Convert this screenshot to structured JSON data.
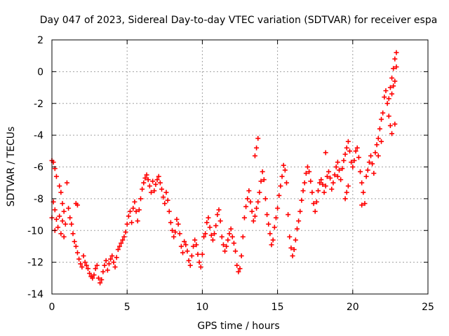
{
  "chart_data": {
    "type": "scatter",
    "title": "Day 047 of 2023, Sidereal Day-to-day VTEC variation (SDTVAR) for receiver espa",
    "xlabel": "GPS time / hours",
    "ylabel": "SDTVAR / TECUs",
    "xlim": [
      0,
      25
    ],
    "ylim": [
      -14,
      2
    ],
    "xticks": [
      0,
      5,
      10,
      15,
      20,
      25
    ],
    "yticks": [
      -14,
      -12,
      -10,
      -8,
      -6,
      -4,
      -2,
      0,
      2
    ],
    "grid": true,
    "marker": "plus",
    "colors": {
      "series": "#ff0000",
      "grid": "#a0a0a0",
      "axes": "#000000"
    },
    "series": [
      {
        "name": "SDTVAR",
        "points": [
          [
            0.0,
            -5.6
          ],
          [
            0.1,
            -5.7
          ],
          [
            0.2,
            -6.1
          ],
          [
            0.3,
            -6.6
          ],
          [
            0.1,
            -8.2
          ],
          [
            0.2,
            -8.7
          ],
          [
            0.3,
            -9.3
          ],
          [
            0.4,
            -9.8
          ],
          [
            0.0,
            -9.2
          ],
          [
            0.2,
            -10.0
          ],
          [
            0.5,
            -7.2
          ],
          [
            0.6,
            -7.6
          ],
          [
            0.7,
            -8.3
          ],
          [
            0.8,
            -8.8
          ],
          [
            0.5,
            -9.1
          ],
          [
            0.7,
            -9.4
          ],
          [
            0.9,
            -9.6
          ],
          [
            0.6,
            -10.2
          ],
          [
            0.8,
            -10.4
          ],
          [
            1.0,
            -7.0
          ],
          [
            1.1,
            -8.6
          ],
          [
            1.2,
            -9.2
          ],
          [
            1.3,
            -9.6
          ],
          [
            1.4,
            -10.2
          ],
          [
            1.5,
            -10.7
          ],
          [
            1.6,
            -11.0
          ],
          [
            1.7,
            -11.4
          ],
          [
            1.8,
            -11.8
          ],
          [
            1.9,
            -12.1
          ],
          [
            2.0,
            -12.3
          ],
          [
            1.6,
            -8.3
          ],
          [
            1.7,
            -8.4
          ],
          [
            2.1,
            -11.6
          ],
          [
            2.2,
            -12.0
          ],
          [
            2.3,
            -12.2
          ],
          [
            2.4,
            -12.4
          ],
          [
            2.5,
            -12.7
          ],
          [
            2.6,
            -12.9
          ],
          [
            2.7,
            -13.0
          ],
          [
            2.8,
            -12.8
          ],
          [
            2.9,
            -12.4
          ],
          [
            3.0,
            -12.2
          ],
          [
            3.1,
            -13.0
          ],
          [
            3.2,
            -13.3
          ],
          [
            3.3,
            -13.1
          ],
          [
            3.4,
            -12.6
          ],
          [
            3.5,
            -12.2
          ],
          [
            3.6,
            -11.9
          ],
          [
            3.7,
            -12.5
          ],
          [
            3.8,
            -12.1
          ],
          [
            3.9,
            -11.8
          ],
          [
            4.0,
            -11.6
          ],
          [
            4.1,
            -12.0
          ],
          [
            4.2,
            -12.3
          ],
          [
            4.3,
            -11.7
          ],
          [
            4.4,
            -11.2
          ],
          [
            4.5,
            -11.0
          ],
          [
            4.6,
            -10.8
          ],
          [
            4.7,
            -10.6
          ],
          [
            4.8,
            -10.4
          ],
          [
            4.9,
            -10.1
          ],
          [
            5.0,
            -9.6
          ],
          [
            5.1,
            -9.1
          ],
          [
            5.2,
            -8.8
          ],
          [
            5.3,
            -9.5
          ],
          [
            5.4,
            -8.6
          ],
          [
            5.5,
            -8.2
          ],
          [
            5.6,
            -8.8
          ],
          [
            5.7,
            -9.4
          ],
          [
            5.8,
            -8.7
          ],
          [
            5.9,
            -8.0
          ],
          [
            6.0,
            -7.4
          ],
          [
            6.1,
            -7.0
          ],
          [
            6.2,
            -6.7
          ],
          [
            6.3,
            -6.5
          ],
          [
            6.4,
            -6.8
          ],
          [
            6.5,
            -7.2
          ],
          [
            6.6,
            -7.6
          ],
          [
            6.7,
            -6.9
          ],
          [
            6.8,
            -7.5
          ],
          [
            6.9,
            -7.1
          ],
          [
            7.0,
            -6.8
          ],
          [
            7.1,
            -6.6
          ],
          [
            7.2,
            -7.0
          ],
          [
            7.3,
            -7.4
          ],
          [
            7.4,
            -7.9
          ],
          [
            7.5,
            -8.3
          ],
          [
            7.6,
            -7.6
          ],
          [
            7.7,
            -8.1
          ],
          [
            7.8,
            -8.8
          ],
          [
            7.9,
            -9.5
          ],
          [
            8.0,
            -10.0
          ],
          [
            8.1,
            -10.4
          ],
          [
            8.2,
            -10.1
          ],
          [
            8.3,
            -9.3
          ],
          [
            8.4,
            -9.6
          ],
          [
            8.5,
            -10.2
          ],
          [
            8.6,
            -11.0
          ],
          [
            8.7,
            -11.4
          ],
          [
            8.8,
            -10.7
          ],
          [
            8.9,
            -10.9
          ],
          [
            9.0,
            -11.3
          ],
          [
            9.1,
            -11.9
          ],
          [
            9.2,
            -12.2
          ],
          [
            9.3,
            -11.6
          ],
          [
            9.4,
            -11.0
          ],
          [
            9.5,
            -10.6
          ],
          [
            9.6,
            -10.9
          ],
          [
            9.7,
            -11.5
          ],
          [
            9.8,
            -12.0
          ],
          [
            9.9,
            -12.3
          ],
          [
            10.0,
            -11.5
          ],
          [
            10.1,
            -10.4
          ],
          [
            10.2,
            -10.2
          ],
          [
            10.3,
            -9.5
          ],
          [
            10.4,
            -9.2
          ],
          [
            10.5,
            -9.8
          ],
          [
            10.6,
            -10.3
          ],
          [
            10.7,
            -10.6
          ],
          [
            10.8,
            -10.2
          ],
          [
            10.9,
            -9.7
          ],
          [
            11.0,
            -9.0
          ],
          [
            11.1,
            -8.7
          ],
          [
            11.2,
            -9.4
          ],
          [
            11.3,
            -10.4
          ],
          [
            11.4,
            -10.9
          ],
          [
            11.5,
            -11.3
          ],
          [
            11.6,
            -11.0
          ],
          [
            11.7,
            -10.6
          ],
          [
            11.8,
            -10.2
          ],
          [
            11.9,
            -9.9
          ],
          [
            12.0,
            -10.4
          ],
          [
            12.1,
            -10.8
          ],
          [
            12.2,
            -11.3
          ],
          [
            12.3,
            -12.2
          ],
          [
            12.4,
            -12.6
          ],
          [
            12.5,
            -12.4
          ],
          [
            12.6,
            -11.6
          ],
          [
            12.7,
            -10.4
          ],
          [
            12.8,
            -9.2
          ],
          [
            12.9,
            -8.5
          ],
          [
            13.0,
            -8.0
          ],
          [
            13.1,
            -7.5
          ],
          [
            13.2,
            -8.2
          ],
          [
            13.3,
            -8.8
          ],
          [
            13.4,
            -9.4
          ],
          [
            13.5,
            -9.1
          ],
          [
            13.6,
            -8.6
          ],
          [
            13.7,
            -8.2
          ],
          [
            13.5,
            -5.3
          ],
          [
            13.6,
            -4.8
          ],
          [
            13.7,
            -4.2
          ],
          [
            13.8,
            -7.6
          ],
          [
            13.9,
            -6.9
          ],
          [
            14.0,
            -6.3
          ],
          [
            14.1,
            -6.8
          ],
          [
            14.2,
            -8.0
          ],
          [
            14.3,
            -9.0
          ],
          [
            14.4,
            -9.6
          ],
          [
            14.5,
            -10.2
          ],
          [
            14.6,
            -10.9
          ],
          [
            14.7,
            -10.6
          ],
          [
            14.8,
            -9.8
          ],
          [
            14.9,
            -9.2
          ],
          [
            15.0,
            -8.6
          ],
          [
            15.1,
            -7.8
          ],
          [
            15.2,
            -7.2
          ],
          [
            15.3,
            -6.6
          ],
          [
            15.4,
            -5.9
          ],
          [
            15.5,
            -6.2
          ],
          [
            15.6,
            -7.0
          ],
          [
            15.7,
            -9.0
          ],
          [
            15.8,
            -10.4
          ],
          [
            15.9,
            -11.1
          ],
          [
            16.0,
            -11.6
          ],
          [
            16.1,
            -11.2
          ],
          [
            16.2,
            -10.6
          ],
          [
            16.3,
            -9.9
          ],
          [
            16.4,
            -9.4
          ],
          [
            16.5,
            -8.8
          ],
          [
            16.6,
            -8.1
          ],
          [
            16.7,
            -7.5
          ],
          [
            16.8,
            -7.0
          ],
          [
            16.9,
            -6.4
          ],
          [
            17.0,
            -6.0
          ],
          [
            17.1,
            -6.3
          ],
          [
            17.2,
            -6.9
          ],
          [
            17.3,
            -7.6
          ],
          [
            17.4,
            -8.3
          ],
          [
            17.5,
            -8.8
          ],
          [
            17.6,
            -8.2
          ],
          [
            17.7,
            -7.5
          ],
          [
            17.8,
            -7.0
          ],
          [
            17.9,
            -6.8
          ],
          [
            18.0,
            -7.1
          ],
          [
            18.1,
            -7.6
          ],
          [
            18.2,
            -7.2
          ],
          [
            18.3,
            -6.6
          ],
          [
            18.4,
            -6.3
          ],
          [
            18.5,
            -6.7
          ],
          [
            18.6,
            -7.4
          ],
          [
            18.7,
            -7.0
          ],
          [
            18.8,
            -6.5
          ],
          [
            18.9,
            -6.0
          ],
          [
            19.0,
            -5.7
          ],
          [
            19.1,
            -6.2
          ],
          [
            19.2,
            -6.8
          ],
          [
            19.3,
            -6.1
          ],
          [
            19.4,
            -5.6
          ],
          [
            19.5,
            -5.2
          ],
          [
            19.6,
            -4.8
          ],
          [
            19.7,
            -4.4
          ],
          [
            19.8,
            -5.0
          ],
          [
            19.9,
            -5.7
          ],
          [
            19.5,
            -8.0
          ],
          [
            19.6,
            -7.6
          ],
          [
            19.7,
            -7.2
          ],
          [
            20.0,
            -6.0
          ],
          [
            20.1,
            -5.6
          ],
          [
            20.2,
            -5.0
          ],
          [
            20.3,
            -4.8
          ],
          [
            20.4,
            -5.4
          ],
          [
            20.5,
            -6.3
          ],
          [
            20.6,
            -7.0
          ],
          [
            20.7,
            -7.6
          ],
          [
            20.8,
            -8.3
          ],
          [
            20.9,
            -6.6
          ],
          [
            21.0,
            -6.2
          ],
          [
            21.1,
            -5.7
          ],
          [
            21.2,
            -5.3
          ],
          [
            21.3,
            -5.8
          ],
          [
            21.4,
            -6.4
          ],
          [
            21.5,
            -5.1
          ],
          [
            21.6,
            -4.6
          ],
          [
            21.7,
            -4.2
          ],
          [
            21.8,
            -3.6
          ],
          [
            21.9,
            -3.0
          ],
          [
            22.0,
            -2.6
          ],
          [
            22.1,
            -1.6
          ],
          [
            22.2,
            -1.2
          ],
          [
            22.3,
            -2.0
          ],
          [
            22.4,
            -2.8
          ],
          [
            22.5,
            -3.4
          ],
          [
            22.5,
            -1.0
          ],
          [
            22.6,
            -0.4
          ],
          [
            22.7,
            0.2
          ],
          [
            22.8,
            0.8
          ],
          [
            22.9,
            1.2
          ],
          [
            22.6,
            -3.9
          ],
          [
            22.8,
            -3.3
          ],
          [
            22.4,
            -1.7
          ],
          [
            22.6,
            -1.4
          ],
          [
            22.7,
            -0.9
          ],
          [
            22.9,
            0.3
          ],
          [
            22.8,
            -0.6
          ],
          [
            21.9,
            -4.4
          ],
          [
            21.7,
            -5.3
          ],
          [
            20.6,
            -8.4
          ],
          [
            19.0,
            -6.6
          ],
          [
            18.2,
            -5.1
          ]
        ]
      }
    ]
  }
}
